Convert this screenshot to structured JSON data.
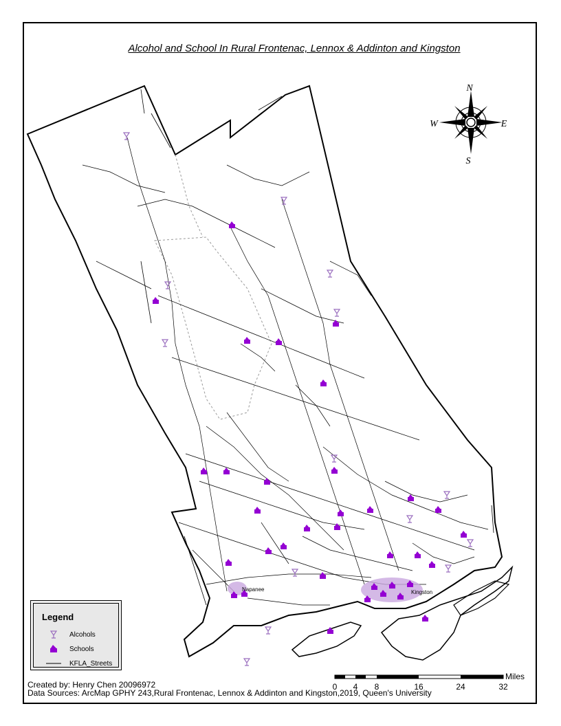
{
  "title": "Alcohol and School In Rural Frontenac, Lennox & Addinton and Kingston",
  "compass": {
    "n": "N",
    "e": "E",
    "s": "S",
    "w": "W"
  },
  "legend": {
    "title": "Legend",
    "items": [
      {
        "label": "Alcohols",
        "symbol": "alcohol-icon",
        "color": "#9b6fbf"
      },
      {
        "label": "Schools",
        "symbol": "school-icon",
        "color": "#9400d3"
      },
      {
        "label": "KFLA_Streets",
        "symbol": "street-line",
        "color": "#000000"
      }
    ]
  },
  "scale_bar": {
    "unit": "Miles",
    "ticks": [
      "0",
      "4",
      "8",
      "16",
      "24",
      "32"
    ]
  },
  "towns": [
    "Napanee",
    "Kingston"
  ],
  "credit": "Created by: Henry Chen 20096972",
  "sources": "Data Sources: ArcMap GPHY 243,Rural Frontenac, Lennox & Addinton and Kingston,2019, Queen's University",
  "colors": {
    "school": "#9400d3",
    "alcohol": "#9b6fbf",
    "streets": "#000000",
    "urban": "#c9a8e0"
  }
}
